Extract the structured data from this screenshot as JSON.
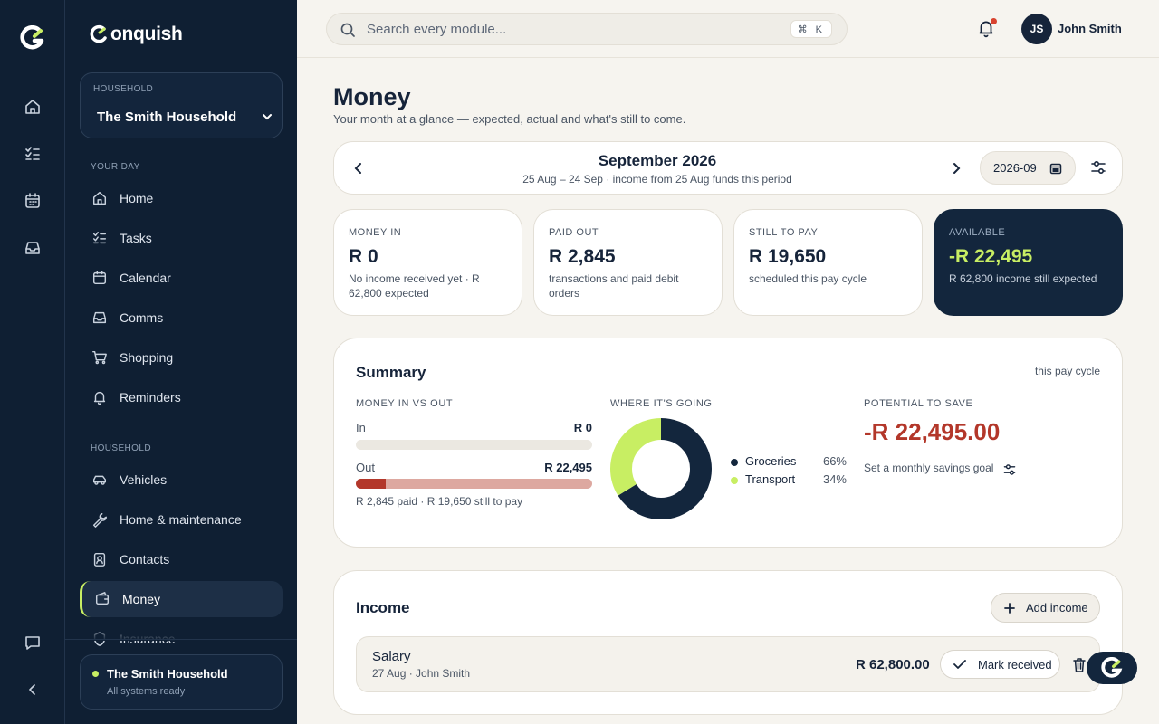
{
  "app": {
    "brand": "onquish",
    "accent_color": "#c8ee63",
    "dark_color": "#13263d",
    "negative_color": "#b3372a"
  },
  "rail": {
    "items": [
      {
        "icon": "home-icon"
      },
      {
        "icon": "tasks-icon"
      },
      {
        "icon": "calendar-icon"
      },
      {
        "icon": "inbox-icon"
      }
    ],
    "bottom": [
      {
        "icon": "chat-icon"
      },
      {
        "icon": "collapse-icon"
      }
    ]
  },
  "sidebar": {
    "household_label": "HOUSEHOLD",
    "household_value": "The Smith Household",
    "your_day_label": "YOUR DAY",
    "household_section_label": "HOUSEHOLD",
    "your_day": [
      {
        "label": "Home",
        "icon": "home-icon"
      },
      {
        "label": "Tasks",
        "icon": "tasks-icon"
      },
      {
        "label": "Calendar",
        "icon": "calendar-icon"
      },
      {
        "label": "Comms",
        "icon": "inbox-icon"
      },
      {
        "label": "Shopping",
        "icon": "cart-icon"
      },
      {
        "label": "Reminders",
        "icon": "bell-icon"
      }
    ],
    "household": [
      {
        "label": "Vehicles",
        "icon": "car-icon"
      },
      {
        "label": "Home & maintenance",
        "icon": "wrench-icon"
      },
      {
        "label": "Contacts",
        "icon": "contacts-icon"
      },
      {
        "label": "Money",
        "icon": "wallet-icon",
        "active": true
      },
      {
        "label": "Insurance",
        "icon": "shield-icon"
      }
    ],
    "status": {
      "title": "The Smith Household",
      "subtitle": "All systems ready"
    }
  },
  "topbar": {
    "search_placeholder": "Search every module...",
    "shortcut": "⌘ K",
    "user_initials": "JS",
    "user_name": "John Smith"
  },
  "page": {
    "title": "Money",
    "subtitle": "Your month at a glance — expected, actual and what's still to come."
  },
  "period": {
    "title": "September 2026",
    "subtitle": "25 Aug – 24 Sep · income from 25 Aug funds this period",
    "month_value": "2026-09"
  },
  "stats": [
    {
      "label": "MONEY IN",
      "value": "R 0",
      "note": "No income received yet · R 62,800 expected"
    },
    {
      "label": "PAID OUT",
      "value": "R 2,845",
      "note": "transactions and paid debit orders"
    },
    {
      "label": "STILL TO PAY",
      "value": "R 19,650",
      "note": "scheduled this pay cycle"
    },
    {
      "label": "AVAILABLE",
      "value": "-R 22,495",
      "note": "R 62,800 income still expected"
    }
  ],
  "summary": {
    "title": "Summary",
    "tag": "this pay cycle",
    "in_out_label": "MONEY IN VS OUT",
    "in_label": "In",
    "in_value": "R 0",
    "in_fraction": 0,
    "out_label": "Out",
    "out_value": "R 22,495",
    "out_paid_fraction": 0.126,
    "out_note": "R 2,845 paid · R 19,650 still to pay",
    "where_label": "WHERE IT'S GOING",
    "breakdown": [
      {
        "name": "Groceries",
        "pct_label": "66%",
        "value": 66,
        "color": "#13263d"
      },
      {
        "name": "Transport",
        "pct_label": "34%",
        "value": 34,
        "color": "#c8ee63"
      }
    ],
    "save_label": "POTENTIAL TO SAVE",
    "save_value": "-R 22,495.00",
    "save_link": "Set a monthly savings goal"
  },
  "income": {
    "title": "Income",
    "add_label": "Add income",
    "rows": [
      {
        "name": "Salary",
        "meta": "27 Aug · John Smith",
        "amount": "R 62,800.00",
        "action": "Mark received"
      }
    ]
  }
}
